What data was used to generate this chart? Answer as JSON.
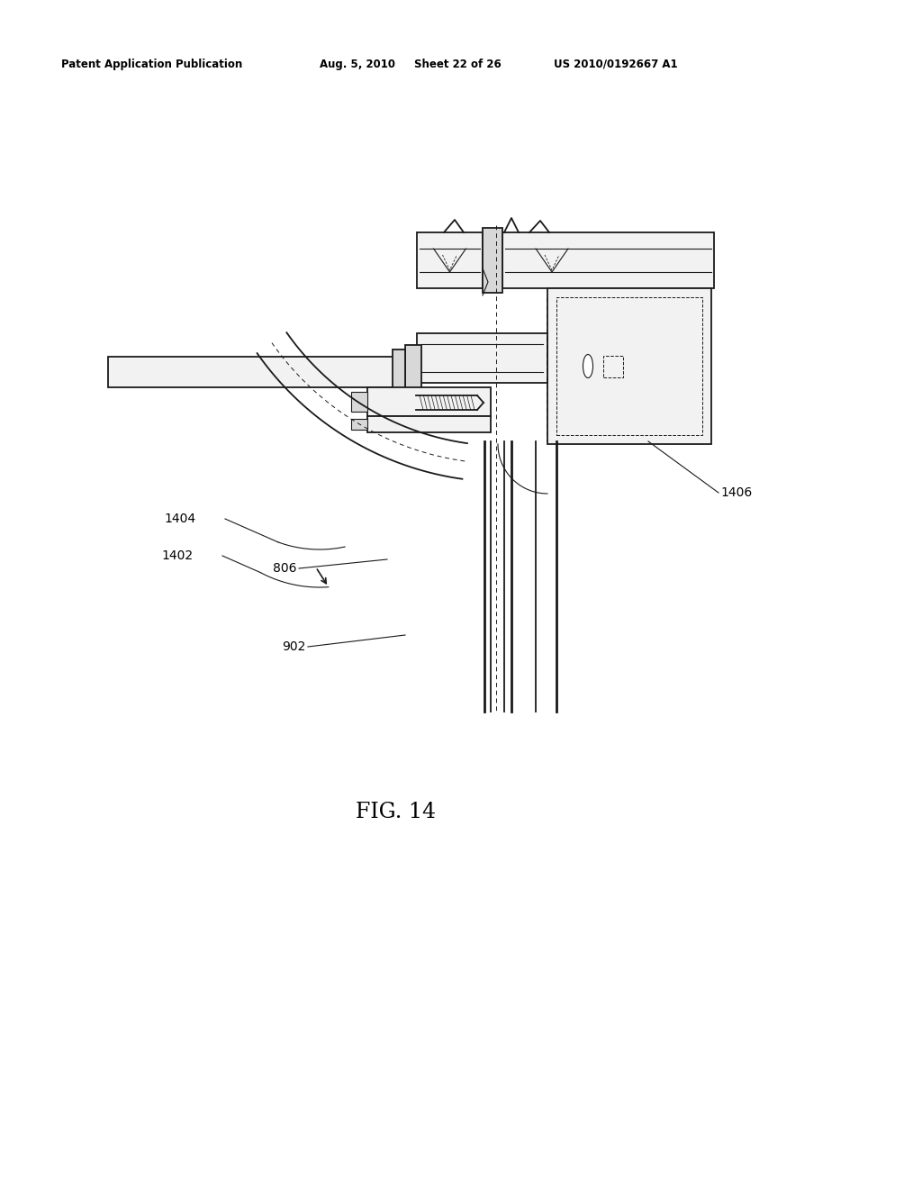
{
  "bg_color": "#ffffff",
  "header_text": "Patent Application Publication",
  "header_date": "Aug. 5, 2010",
  "header_sheet": "Sheet 22 of 26",
  "header_patent": "US 2010/0192667 A1",
  "fig_label": "FIG. 14",
  "line_color": "#1a1a1a",
  "gray_fill": "#d8d8d8",
  "light_fill": "#f2f2f2"
}
